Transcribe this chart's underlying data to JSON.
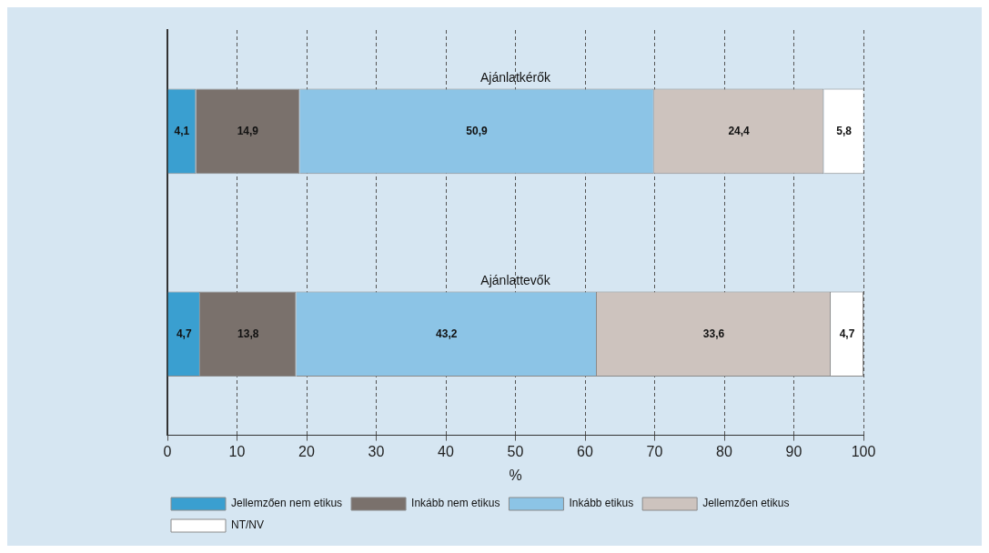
{
  "chart_data": {
    "type": "bar",
    "orientation": "horizontal",
    "stacked": true,
    "xlabel": "%",
    "categories": [
      "Ajánlatkérők",
      "Ajánlattevők"
    ],
    "series": [
      {
        "name": "Jellemzően nem etikus",
        "color": "#3a9fd0",
        "values": [
          4.1,
          4.7
        ],
        "value_labels": [
          "4,1",
          "4,7"
        ]
      },
      {
        "name": "Inkább nem etikus",
        "color": "#7a716c",
        "values": [
          14.9,
          13.8
        ],
        "value_labels": [
          "14,9",
          "13,8"
        ]
      },
      {
        "name": "Inkább etikus",
        "color": "#8cc4e6",
        "values": [
          50.9,
          43.2
        ],
        "value_labels": [
          "50,9",
          "43,2"
        ]
      },
      {
        "name": "Jellemzően etikus",
        "color": "#cdc3be",
        "values": [
          24.4,
          33.6
        ],
        "value_labels": [
          "24,4",
          "33,6"
        ]
      },
      {
        "name": "NT/NV",
        "color": "#ffffff",
        "values": [
          5.8,
          4.7
        ],
        "value_labels": [
          "5,8",
          "4,7"
        ]
      }
    ],
    "xlim": [
      0,
      100
    ],
    "xticks": [
      0,
      10,
      20,
      30,
      40,
      50,
      60,
      70,
      80,
      90,
      100
    ],
    "grid": "x",
    "legend": "bottom"
  }
}
